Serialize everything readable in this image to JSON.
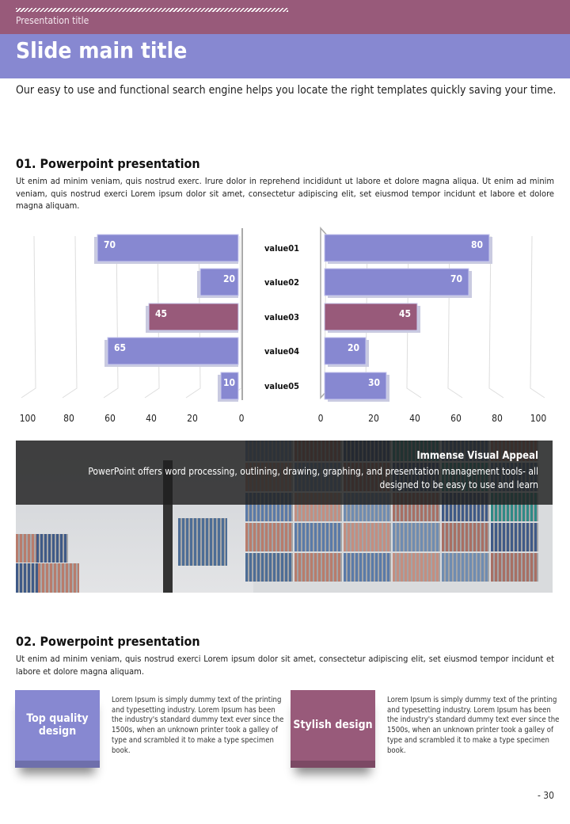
{
  "header": {
    "presentation_title": "Presentation title",
    "slide_title": "Slide main title"
  },
  "intro": "Our easy to use and functional search engine helps you locate the right templates quickly saving your time.",
  "section1": {
    "title": "01. Powerpoint presentation",
    "text": "Ut enim ad minim veniam, quis nostrud exerc. Irure dolor in reprehend incididunt ut labore et dolore magna aliqua. Ut enim ad minim veniam, quis nostrud exerci  Lorem ipsum dolor sit amet, consectetur adipiscing elit, set eiusmod tempor incidunt et labore et dolore magna aliquam."
  },
  "chart_data": {
    "type": "bar",
    "categories": [
      "value01",
      "value02",
      "value03",
      "value04",
      "value05"
    ],
    "series": [
      {
        "name": "left",
        "values": [
          70,
          20,
          45,
          65,
          10
        ]
      },
      {
        "name": "right",
        "values": [
          80,
          70,
          45,
          20,
          30
        ]
      }
    ],
    "highlight_index": 2,
    "xlim": [
      0,
      100
    ],
    "ticks": [
      "0",
      "20",
      "40",
      "60",
      "80",
      "100"
    ],
    "colors": {
      "bar": "#8788d1",
      "highlight": "#985a7a"
    }
  },
  "banner": {
    "title": "Immense Visual Appeal",
    "text": "PowerPoint offers word processing, outlining, drawing, graphing, and presentation management tools- all designed to be easy to use and learn"
  },
  "section2": {
    "title": "02. Powerpoint presentation",
    "text": "Ut enim ad minim veniam, quis nostrud exerci  Lorem ipsum dolor sit amet, consectetur adipiscing elit, set eiusmod tempor incidunt et labore et dolore magna aliquam."
  },
  "features": [
    {
      "label": "Top quality design",
      "text": "Lorem Ipsum is simply dummy text of the printing and typesetting industry. Lorem Ipsum has been the industry's standard dummy text ever since the 1500s, when an unknown printer took a galley of type and scrambled it to make a type specimen book."
    },
    {
      "label": "Stylish design",
      "text": "Lorem Ipsum is simply dummy text of the printing and typesetting industry. Lorem Ipsum has been the industry's standard dummy text ever since the 1500s, when an unknown printer took a galley of type and scrambled it to make a type specimen book."
    }
  ],
  "page_number": "- 30",
  "colors": {
    "purple": "#985a7a",
    "lavender": "#8788d1"
  }
}
